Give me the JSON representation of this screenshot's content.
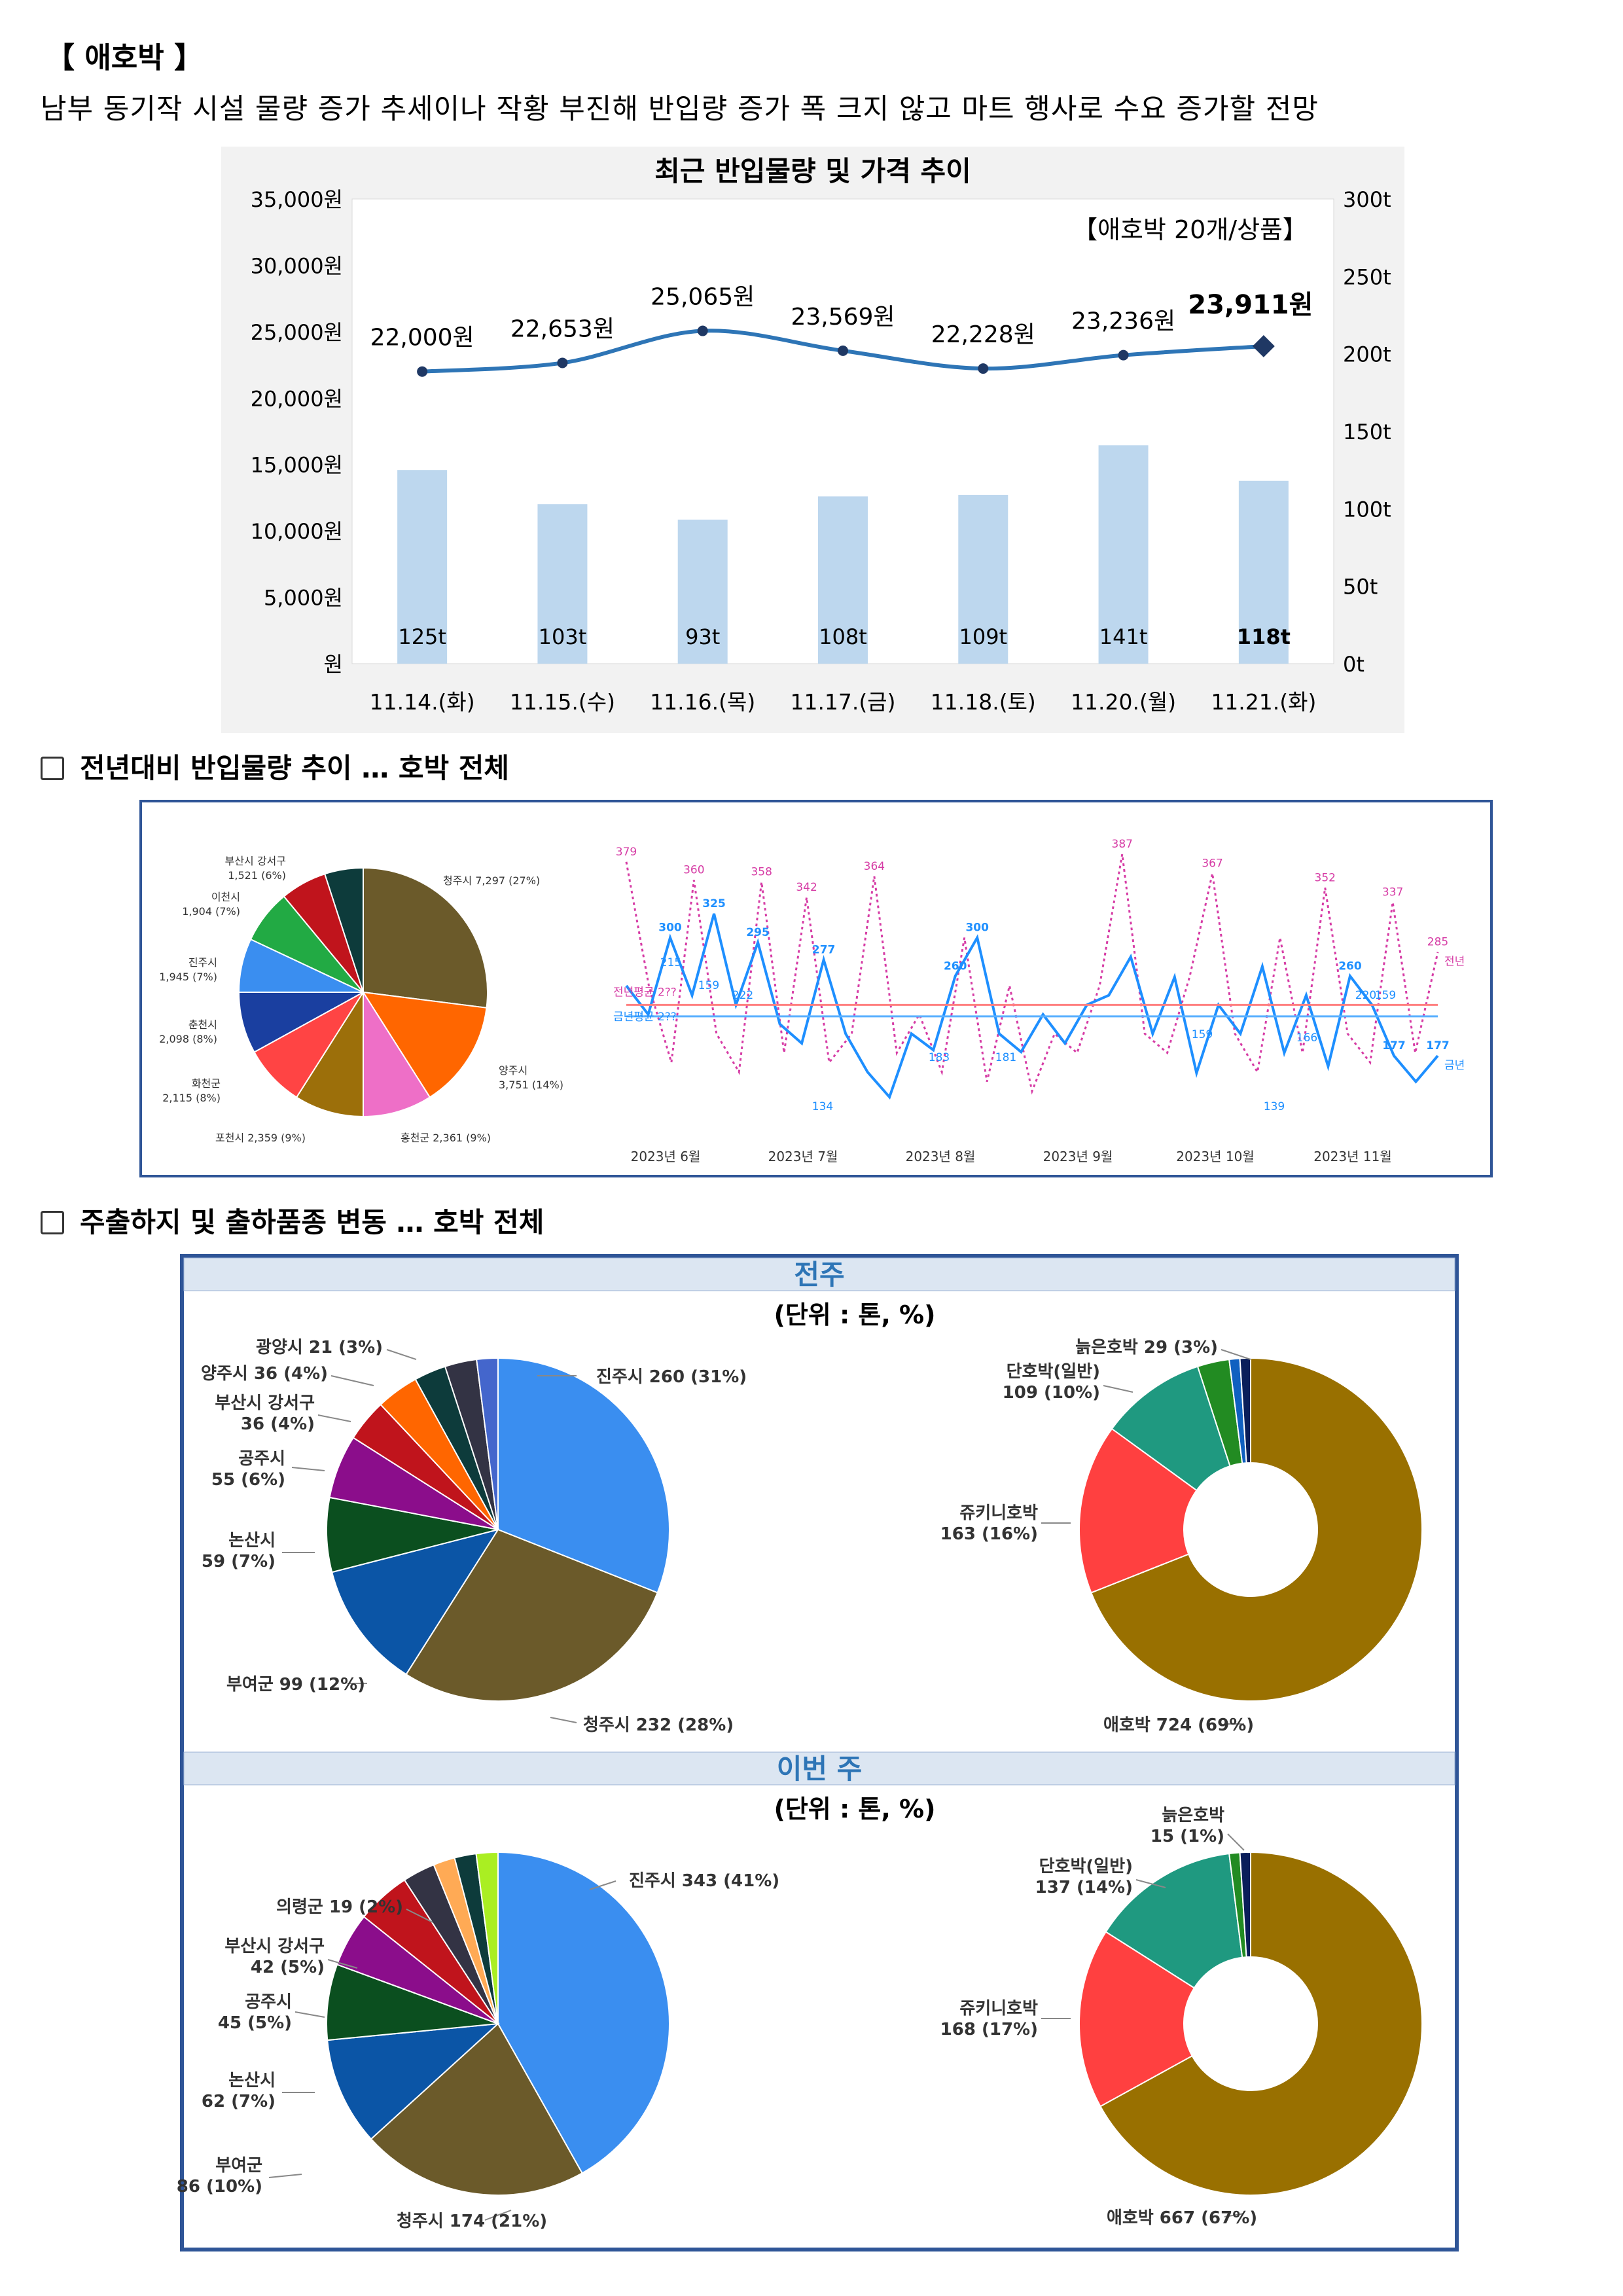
{
  "title": "【 애호박 】",
  "subtitle": "남부 동기작 시설 물량 증가 추세이나 작황 부진해 반입량 증가 폭 크지 않고 마트 행사로 수요 증가할 전망",
  "sections": {
    "yoy": "전년대비 반입물량 추이 … 호박 전체",
    "origin": "주출하지 및 출하품종 변동 … 호박 전체"
  },
  "chart_data": [
    {
      "id": "recent",
      "type": "bar+line",
      "title": "최근 반입물량 및 가격 추이",
      "note": "【애호박 20개/상품】",
      "categories": [
        "11.14.(화)",
        "11.15.(수)",
        "11.16.(목)",
        "11.17.(금)",
        "11.18.(토)",
        "11.20.(월)",
        "11.21.(화)"
      ],
      "volume_t": [
        125,
        103,
        93,
        108,
        109,
        141,
        118
      ],
      "volume_labels": [
        "125t",
        "103t",
        "93t",
        "108t",
        "109t",
        "141t",
        "118t"
      ],
      "price_won": [
        22000,
        22653,
        25065,
        23569,
        22228,
        23236,
        23911
      ],
      "price_labels": [
        "22,000원",
        "22,653원",
        "25,065원",
        "23,569원",
        "22,228원",
        "23,236원",
        "23,911원"
      ],
      "y_left_ticks": [
        "35,000원",
        "30,000원",
        "25,000원",
        "20,000원",
        "15,000원",
        "10,000원",
        "5,000원",
        "원"
      ],
      "y_left_range": [
        0,
        35000
      ],
      "y_right_ticks": [
        "300t",
        "250t",
        "200t",
        "150t",
        "100t",
        "50t",
        "0t"
      ],
      "y_right_range": [
        0,
        300
      ],
      "colors": {
        "bar": "#bdd7ee",
        "line": "#2e75b6",
        "last_marker": "#1f3864"
      }
    },
    {
      "id": "yoy-pie",
      "type": "pie",
      "slices": [
        {
          "label": "청주시 7,297 (27%)",
          "value": 27,
          "color": "#6b5a2a"
        },
        {
          "label": "양주시 3,751 (14%)",
          "value": 14,
          "color": "#ff6600"
        },
        {
          "label": "홍천군 2,361 (9%)",
          "value": 9,
          "color": "#ee6fc7"
        },
        {
          "label": "포천시 2,359 (9%)",
          "value": 9,
          "color": "#9c6f0a"
        },
        {
          "label": "화천군 2,115 (8%)",
          "value": 8,
          "color": "#ff4444"
        },
        {
          "label": "춘천시 2,098 (8%)",
          "value": 8,
          "color": "#1a3fa0"
        },
        {
          "label": "진주시 1,945 (7%)",
          "value": 7,
          "color": "#3a8ef0"
        },
        {
          "label": "이천시 1,904 (7%)",
          "value": 7,
          "color": "#22aa44"
        },
        {
          "label": "부산시 강서구 1,521 (6%)",
          "value": 6,
          "color": "#c0141c"
        },
        {
          "label": "",
          "value": 5,
          "color": "#0d3b3b"
        }
      ]
    },
    {
      "id": "yoy-line",
      "type": "line",
      "x_labels": [
        "2023년 6월",
        "2023년 7월",
        "2023년 8월",
        "2023년 9월",
        "2023년 10월",
        "2023년 11월"
      ],
      "series": [
        {
          "name": "전년",
          "color": "#d63ca5",
          "values": [
            379,
            250,
            170,
            360,
            200,
            160,
            358,
            180,
            342,
            170,
            200,
            364,
            180,
            220,
            160,
            300,
            150,
            250,
            140,
            200,
            180,
            250,
            387,
            200,
            180,
            260,
            367,
            200,
            160,
            300,
            180,
            352,
            200,
            170,
            337,
            180,
            285
          ]
        },
        {
          "name": "금년",
          "color": "#1e8fff",
          "values": [
            250,
            220,
            300,
            240,
            325,
            230,
            295,
            210,
            190,
            277,
            200,
            160,
            134,
            200,
            183,
            260,
            300,
            200,
            181,
            220,
            190,
            230,
            240,
            280,
            200,
            259,
            159,
            230,
            200,
            270,
            180,
            240,
            166,
            260,
            230,
            177,
            150,
            177
          ]
        }
      ],
      "peak_labels_prev": [
        "379",
        "360",
        "358",
        "342",
        "364",
        "387",
        "367",
        "352",
        "337",
        "285"
      ],
      "peak_labels_curr": [
        "325",
        "295",
        "277",
        "300",
        "260",
        "177"
      ],
      "mid_labels": [
        "215",
        "159",
        "222",
        "134",
        "183",
        "181",
        "159",
        "166",
        "139",
        "220",
        "159"
      ],
      "avg_labels": [
        "전년평균 2??",
        "금년평균 2??"
      ],
      "legend": [
        "전년",
        "금년"
      ]
    },
    {
      "id": "lastweek",
      "heading": "전주",
      "unit": "(단위 : 톤, %)",
      "origin_pie": [
        {
          "label": "진주시 260 (31%)",
          "value": 31,
          "color": "#3a8ef0"
        },
        {
          "label": "청주시 232 (28%)",
          "value": 28,
          "color": "#6b5a2a"
        },
        {
          "label": "부여군 99 (12%)",
          "value": 12,
          "color": "#0b55a6"
        },
        {
          "label": "논산시 59 (7%)",
          "value": 7,
          "color": "#0b4f1f"
        },
        {
          "label": "공주시 55 (6%)",
          "value": 6,
          "color": "#8b0d8b"
        },
        {
          "label": "부산시 강서구 36 (4%)",
          "value": 4,
          "color": "#c0141c"
        },
        {
          "label": "양주시 36 (4%)",
          "value": 4,
          "color": "#ff6600"
        },
        {
          "label": "",
          "value": 3,
          "color": "#0d3b3b"
        },
        {
          "label": "광양시 21 (3%)",
          "value": 3,
          "color": "#333344"
        },
        {
          "label": "",
          "value": 2,
          "color": "#4466cc"
        }
      ],
      "variety_donut": [
        {
          "label": "애호박 724 (69%)",
          "value": 69,
          "color": "#997000"
        },
        {
          "label": "쥬키니호박 163 (16%)",
          "value": 16,
          "color": "#ff4040"
        },
        {
          "label": "단호박(일반) 109 (10%)",
          "value": 10,
          "color": "#1f9980"
        },
        {
          "label": "늙은호박 29 (3%)",
          "value": 3,
          "color": "#228b22"
        },
        {
          "label": "",
          "value": 1,
          "color": "#1060c0"
        },
        {
          "label": "",
          "value": 1,
          "color": "#0a1e5a"
        }
      ]
    },
    {
      "id": "thisweek",
      "heading": "이번 주",
      "unit": "(단위 : 톤, %)",
      "origin_pie": [
        {
          "label": "진주시 343 (41%)",
          "value": 41,
          "color": "#3a8ef0"
        },
        {
          "label": "청주시 174 (21%)",
          "value": 21,
          "color": "#6b5a2a"
        },
        {
          "label": "부여군 86 (10%)",
          "value": 10,
          "color": "#0b55a6"
        },
        {
          "label": "논산시 62 (7%)",
          "value": 7,
          "color": "#0b4f1f"
        },
        {
          "label": "공주시 45 (5%)",
          "value": 5,
          "color": "#8b0d8b"
        },
        {
          "label": "부산시 강서구 42 (5%)",
          "value": 5,
          "color": "#c0141c"
        },
        {
          "label": "",
          "value": 3,
          "color": "#333344"
        },
        {
          "label": "의령군 19 (2%)",
          "value": 2,
          "color": "#ffaa55"
        },
        {
          "label": "",
          "value": 2,
          "color": "#0d3b3b"
        },
        {
          "label": "",
          "value": 2,
          "color": "#aaee22"
        }
      ],
      "variety_donut": [
        {
          "label": "애호박 667 (67%)",
          "value": 67,
          "color": "#997000"
        },
        {
          "label": "쥬키니호박 168 (17%)",
          "value": 17,
          "color": "#ff4040"
        },
        {
          "label": "단호박(일반) 137 (14%)",
          "value": 14,
          "color": "#1f9980"
        },
        {
          "label": "늙은호박 15 (1%)",
          "value": 1,
          "color": "#228b22"
        },
        {
          "label": "",
          "value": 1,
          "color": "#0a1e5a"
        }
      ]
    }
  ]
}
